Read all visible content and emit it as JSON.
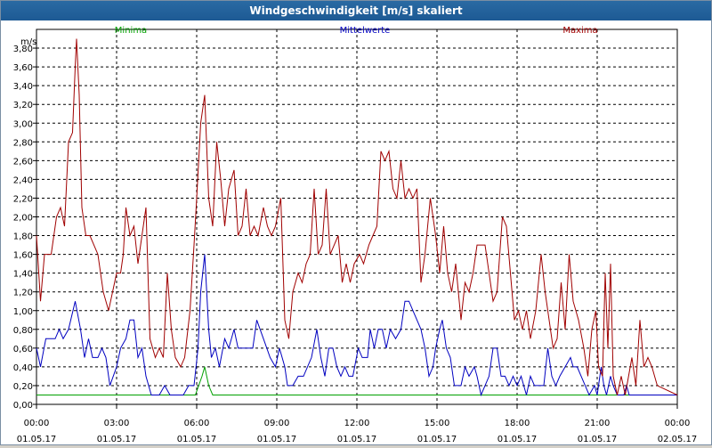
{
  "window": {
    "title": "Windgeschwindigkeit [m/s] skaliert"
  },
  "colors": {
    "minima": "#00a000",
    "mittel": "#0000c0",
    "maxima": "#a00000",
    "titlebar": "#1d5a94"
  },
  "chart_data": {
    "type": "line",
    "title": "Windgeschwindigkeit [m/s] skaliert",
    "ylabel": "m/s",
    "ylim": [
      0,
      4.0
    ],
    "yticks": [
      "0,00",
      "0,20",
      "0,40",
      "0,60",
      "0,80",
      "1,00",
      "1,20",
      "1,40",
      "1,60",
      "1,80",
      "2,00",
      "2,20",
      "2,40",
      "2,60",
      "2,80",
      "3,00",
      "3,20",
      "3,40",
      "3,60",
      "3,80"
    ],
    "x_time_ticks": [
      "00:00",
      "03:00",
      "06:00",
      "09:00",
      "12:00",
      "15:00",
      "18:00",
      "21:00",
      "00:00"
    ],
    "x_date_ticks": [
      "01.05.17",
      "01.05.17",
      "01.05.17",
      "01.05.17",
      "01.05.17",
      "01.05.17",
      "01.05.17",
      "01.05.17",
      "02.05.17"
    ],
    "x_range_hours": [
      0,
      24
    ],
    "grid": true,
    "legend_placement": "top",
    "series": [
      {
        "name": "Minima",
        "color": "#00a000",
        "points": [
          [
            0,
            0.1
          ],
          [
            5.95,
            0.1
          ],
          [
            6.2,
            0.3
          ],
          [
            6.3,
            0.4
          ],
          [
            6.45,
            0.2
          ],
          [
            6.6,
            0.1
          ],
          [
            24,
            0.1
          ]
        ]
      },
      {
        "name": "Mittelwerte",
        "color": "#0000c0",
        "points": [
          [
            0,
            0.6
          ],
          [
            0.15,
            0.4
          ],
          [
            0.35,
            0.7
          ],
          [
            0.7,
            0.7
          ],
          [
            0.85,
            0.8
          ],
          [
            1.0,
            0.7
          ],
          [
            1.2,
            0.8
          ],
          [
            1.45,
            1.1
          ],
          [
            1.65,
            0.8
          ],
          [
            1.8,
            0.5
          ],
          [
            1.95,
            0.7
          ],
          [
            2.1,
            0.5
          ],
          [
            2.3,
            0.5
          ],
          [
            2.45,
            0.6
          ],
          [
            2.6,
            0.5
          ],
          [
            2.75,
            0.2
          ],
          [
            3.0,
            0.4
          ],
          [
            3.15,
            0.6
          ],
          [
            3.35,
            0.7
          ],
          [
            3.5,
            0.9
          ],
          [
            3.65,
            0.9
          ],
          [
            3.8,
            0.5
          ],
          [
            3.95,
            0.6
          ],
          [
            4.1,
            0.3
          ],
          [
            4.3,
            0.1
          ],
          [
            4.6,
            0.1
          ],
          [
            4.8,
            0.2
          ],
          [
            5.0,
            0.1
          ],
          [
            5.5,
            0.1
          ],
          [
            5.7,
            0.2
          ],
          [
            5.9,
            0.2
          ],
          [
            6.05,
            0.6
          ],
          [
            6.15,
            1.2
          ],
          [
            6.3,
            1.6
          ],
          [
            6.45,
            0.8
          ],
          [
            6.55,
            0.5
          ],
          [
            6.7,
            0.6
          ],
          [
            6.85,
            0.4
          ],
          [
            7.05,
            0.7
          ],
          [
            7.2,
            0.6
          ],
          [
            7.4,
            0.8
          ],
          [
            7.55,
            0.6
          ],
          [
            8.1,
            0.6
          ],
          [
            8.25,
            0.9
          ],
          [
            8.5,
            0.7
          ],
          [
            8.75,
            0.5
          ],
          [
            8.95,
            0.4
          ],
          [
            9.1,
            0.6
          ],
          [
            9.3,
            0.4
          ],
          [
            9.4,
            0.2
          ],
          [
            9.6,
            0.2
          ],
          [
            9.8,
            0.3
          ],
          [
            10.0,
            0.3
          ],
          [
            10.3,
            0.5
          ],
          [
            10.5,
            0.8
          ],
          [
            10.65,
            0.5
          ],
          [
            10.8,
            0.3
          ],
          [
            10.95,
            0.6
          ],
          [
            11.1,
            0.6
          ],
          [
            11.25,
            0.4
          ],
          [
            11.4,
            0.3
          ],
          [
            11.55,
            0.4
          ],
          [
            11.7,
            0.3
          ],
          [
            11.85,
            0.3
          ],
          [
            12.05,
            0.6
          ],
          [
            12.2,
            0.5
          ],
          [
            12.4,
            0.5
          ],
          [
            12.5,
            0.8
          ],
          [
            12.65,
            0.6
          ],
          [
            12.8,
            0.8
          ],
          [
            12.95,
            0.8
          ],
          [
            13.1,
            0.6
          ],
          [
            13.25,
            0.8
          ],
          [
            13.45,
            0.7
          ],
          [
            13.65,
            0.8
          ],
          [
            13.8,
            1.1
          ],
          [
            13.95,
            1.1
          ],
          [
            14.1,
            1.0
          ],
          [
            14.25,
            0.9
          ],
          [
            14.4,
            0.8
          ],
          [
            14.55,
            0.6
          ],
          [
            14.7,
            0.3
          ],
          [
            14.85,
            0.4
          ],
          [
            14.95,
            0.6
          ],
          [
            15.1,
            0.8
          ],
          [
            15.2,
            0.9
          ],
          [
            15.35,
            0.6
          ],
          [
            15.5,
            0.5
          ],
          [
            15.65,
            0.2
          ],
          [
            15.9,
            0.2
          ],
          [
            16.05,
            0.4
          ],
          [
            16.2,
            0.3
          ],
          [
            16.4,
            0.4
          ],
          [
            16.5,
            0.3
          ],
          [
            16.65,
            0.1
          ],
          [
            16.8,
            0.2
          ],
          [
            16.95,
            0.3
          ],
          [
            17.1,
            0.6
          ],
          [
            17.25,
            0.6
          ],
          [
            17.4,
            0.3
          ],
          [
            17.55,
            0.3
          ],
          [
            17.7,
            0.2
          ],
          [
            17.85,
            0.3
          ],
          [
            18.0,
            0.2
          ],
          [
            18.15,
            0.3
          ],
          [
            18.35,
            0.1
          ],
          [
            18.5,
            0.3
          ],
          [
            18.65,
            0.2
          ],
          [
            19.0,
            0.2
          ],
          [
            19.15,
            0.6
          ],
          [
            19.3,
            0.3
          ],
          [
            19.45,
            0.2
          ],
          [
            19.6,
            0.3
          ],
          [
            19.8,
            0.4
          ],
          [
            20.0,
            0.5
          ],
          [
            20.1,
            0.4
          ],
          [
            20.25,
            0.4
          ],
          [
            20.4,
            0.3
          ],
          [
            20.55,
            0.2
          ],
          [
            20.7,
            0.1
          ],
          [
            20.9,
            0.2
          ],
          [
            21.0,
            0.1
          ],
          [
            21.15,
            0.4
          ],
          [
            21.25,
            0.2
          ],
          [
            21.35,
            0.1
          ],
          [
            21.5,
            0.3
          ],
          [
            21.6,
            0.2
          ],
          [
            21.75,
            0.1
          ],
          [
            22.0,
            0.1
          ],
          [
            22.1,
            0.2
          ],
          [
            22.2,
            0.1
          ],
          [
            24.0,
            0.1
          ]
        ]
      },
      {
        "name": "Maxima",
        "color": "#a00000",
        "points": [
          [
            0,
            1.8
          ],
          [
            0.15,
            1.1
          ],
          [
            0.3,
            1.6
          ],
          [
            0.45,
            1.6
          ],
          [
            0.55,
            1.6
          ],
          [
            0.75,
            2.0
          ],
          [
            0.9,
            2.1
          ],
          [
            1.05,
            1.9
          ],
          [
            1.2,
            2.8
          ],
          [
            1.35,
            2.9
          ],
          [
            1.45,
            3.6
          ],
          [
            1.5,
            3.9
          ],
          [
            1.6,
            3.3
          ],
          [
            1.7,
            2.1
          ],
          [
            1.85,
            1.8
          ],
          [
            2.0,
            1.8
          ],
          [
            2.15,
            1.7
          ],
          [
            2.3,
            1.6
          ],
          [
            2.5,
            1.2
          ],
          [
            2.7,
            1.0
          ],
          [
            2.85,
            1.2
          ],
          [
            3.0,
            1.4
          ],
          [
            3.15,
            1.4
          ],
          [
            3.25,
            1.6
          ],
          [
            3.35,
            2.1
          ],
          [
            3.5,
            1.8
          ],
          [
            3.65,
            1.9
          ],
          [
            3.8,
            1.5
          ],
          [
            3.95,
            1.8
          ],
          [
            4.1,
            2.1
          ],
          [
            4.25,
            0.7
          ],
          [
            4.45,
            0.5
          ],
          [
            4.6,
            0.6
          ],
          [
            4.75,
            0.5
          ],
          [
            4.9,
            1.4
          ],
          [
            5.05,
            0.8
          ],
          [
            5.2,
            0.5
          ],
          [
            5.4,
            0.4
          ],
          [
            5.55,
            0.5
          ],
          [
            5.75,
            1.0
          ],
          [
            5.9,
            1.7
          ],
          [
            6.0,
            2.2
          ],
          [
            6.15,
            3.0
          ],
          [
            6.3,
            3.3
          ],
          [
            6.45,
            2.2
          ],
          [
            6.6,
            1.9
          ],
          [
            6.75,
            2.8
          ],
          [
            6.9,
            2.4
          ],
          [
            7.05,
            1.9
          ],
          [
            7.2,
            2.3
          ],
          [
            7.4,
            2.5
          ],
          [
            7.55,
            1.8
          ],
          [
            7.7,
            1.9
          ],
          [
            7.85,
            2.3
          ],
          [
            8.0,
            1.8
          ],
          [
            8.15,
            1.9
          ],
          [
            8.3,
            1.8
          ],
          [
            8.5,
            2.1
          ],
          [
            8.65,
            1.9
          ],
          [
            8.8,
            1.8
          ],
          [
            8.95,
            1.9
          ],
          [
            9.15,
            2.2
          ],
          [
            9.3,
            0.9
          ],
          [
            9.45,
            0.7
          ],
          [
            9.6,
            1.2
          ],
          [
            9.8,
            1.4
          ],
          [
            9.95,
            1.3
          ],
          [
            10.1,
            1.5
          ],
          [
            10.25,
            1.6
          ],
          [
            10.4,
            2.3
          ],
          [
            10.55,
            1.6
          ],
          [
            10.7,
            1.7
          ],
          [
            10.85,
            2.3
          ],
          [
            11.0,
            1.6
          ],
          [
            11.15,
            1.7
          ],
          [
            11.3,
            1.8
          ],
          [
            11.45,
            1.3
          ],
          [
            11.6,
            1.5
          ],
          [
            11.75,
            1.3
          ],
          [
            11.9,
            1.5
          ],
          [
            12.1,
            1.6
          ],
          [
            12.25,
            1.5
          ],
          [
            12.45,
            1.7
          ],
          [
            12.6,
            1.8
          ],
          [
            12.75,
            1.9
          ],
          [
            12.9,
            2.7
          ],
          [
            13.05,
            2.6
          ],
          [
            13.2,
            2.7
          ],
          [
            13.35,
            2.3
          ],
          [
            13.5,
            2.2
          ],
          [
            13.65,
            2.6
          ],
          [
            13.8,
            2.2
          ],
          [
            13.95,
            2.3
          ],
          [
            14.1,
            2.2
          ],
          [
            14.25,
            2.3
          ],
          [
            14.4,
            1.3
          ],
          [
            14.55,
            1.6
          ],
          [
            14.75,
            2.2
          ],
          [
            14.95,
            1.8
          ],
          [
            15.1,
            1.4
          ],
          [
            15.25,
            1.9
          ],
          [
            15.4,
            1.4
          ],
          [
            15.55,
            1.2
          ],
          [
            15.7,
            1.5
          ],
          [
            15.9,
            0.9
          ],
          [
            16.05,
            1.3
          ],
          [
            16.2,
            1.2
          ],
          [
            16.35,
            1.4
          ],
          [
            16.5,
            1.7
          ],
          [
            16.65,
            1.7
          ],
          [
            16.8,
            1.7
          ],
          [
            16.95,
            1.4
          ],
          [
            17.1,
            1.1
          ],
          [
            17.25,
            1.2
          ],
          [
            17.45,
            2.0
          ],
          [
            17.6,
            1.9
          ],
          [
            17.75,
            1.4
          ],
          [
            17.9,
            0.9
          ],
          [
            18.05,
            1.0
          ],
          [
            18.2,
            0.8
          ],
          [
            18.35,
            1.0
          ],
          [
            18.5,
            0.7
          ],
          [
            18.7,
            1.0
          ],
          [
            18.9,
            1.6
          ],
          [
            19.05,
            1.2
          ],
          [
            19.2,
            0.9
          ],
          [
            19.35,
            0.6
          ],
          [
            19.5,
            0.7
          ],
          [
            19.65,
            1.3
          ],
          [
            19.8,
            0.8
          ],
          [
            19.95,
            1.6
          ],
          [
            20.1,
            1.1
          ],
          [
            20.3,
            0.9
          ],
          [
            20.5,
            0.6
          ],
          [
            20.65,
            0.3
          ],
          [
            20.8,
            0.8
          ],
          [
            20.95,
            1.0
          ],
          [
            21.05,
            0.4
          ],
          [
            21.2,
            0.3
          ],
          [
            21.3,
            1.4
          ],
          [
            21.4,
            0.6
          ],
          [
            21.5,
            1.5
          ],
          [
            21.6,
            0.3
          ],
          [
            21.75,
            0.1
          ],
          [
            21.9,
            0.3
          ],
          [
            22.05,
            0.1
          ],
          [
            22.3,
            0.5
          ],
          [
            22.45,
            0.2
          ],
          [
            22.6,
            0.9
          ],
          [
            22.75,
            0.4
          ],
          [
            22.9,
            0.5
          ],
          [
            23.05,
            0.4
          ],
          [
            23.25,
            0.2
          ],
          [
            24.0,
            0.1
          ]
        ]
      }
    ]
  }
}
